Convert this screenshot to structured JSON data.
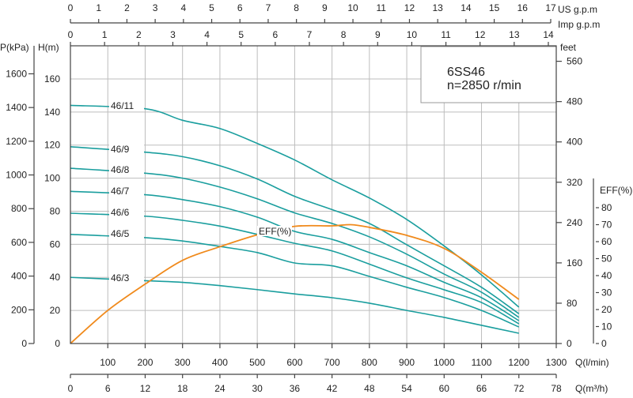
{
  "chart_data": {
    "type": "line",
    "title": "6SS46",
    "subtitle": "n=2850 r/min",
    "grid": true,
    "legend": "top-right",
    "x": {
      "label": "Q(l/min)",
      "range": [
        0,
        1300
      ],
      "ticks": [
        100,
        200,
        300,
        400,
        500,
        600,
        700,
        800,
        900,
        1000,
        1100,
        1200,
        1300
      ]
    },
    "x_m3h": {
      "label": "Q(m³/h)",
      "range": [
        0,
        78
      ],
      "ticks": [
        0,
        6,
        12,
        18,
        24,
        30,
        36,
        42,
        48,
        54,
        60,
        66,
        72,
        78
      ]
    },
    "x_usgpm": {
      "label": "US  g.p.m",
      "range": [
        0,
        17
      ],
      "ticks": [
        0,
        1,
        2,
        3,
        4,
        5,
        6,
        7,
        8,
        9,
        10,
        11,
        12,
        13,
        14,
        15,
        16,
        17
      ]
    },
    "x_impgpm": {
      "label": "Imp  g.p.m",
      "range": [
        0,
        14
      ],
      "ticks": [
        0,
        1,
        2,
        3,
        4,
        5,
        6,
        7,
        8,
        9,
        10,
        11,
        12,
        13,
        14
      ]
    },
    "y_head": {
      "label": "H(m)",
      "range": [
        0,
        160
      ],
      "ticks": [
        0,
        20,
        40,
        60,
        80,
        100,
        120,
        140,
        160
      ]
    },
    "y_kpa": {
      "label": "P(kPa)",
      "ticks": [
        0,
        200,
        400,
        600,
        800,
        1000,
        1200,
        1400,
        1600
      ]
    },
    "y_feet": {
      "label": "feet",
      "ticks": [
        0,
        80,
        160,
        240,
        320,
        400,
        480,
        560
      ]
    },
    "y_eff": {
      "label": "EFF(%)",
      "range": [
        0,
        80
      ],
      "ticks": [
        0,
        10,
        20,
        30,
        40,
        50,
        60,
        70,
        80
      ]
    },
    "q": [
      0,
      200,
      300,
      400,
      500,
      600,
      700,
      800,
      900,
      1000,
      1100,
      1200
    ],
    "series": [
      {
        "name": "46/11",
        "values": [
          144,
          142,
          135,
          130,
          121,
          111,
          99,
          88,
          75,
          59,
          41.5,
          22
        ]
      },
      {
        "name": "46/9",
        "values": [
          119,
          115.7,
          113,
          107.5,
          99.5,
          89,
          81,
          72.6,
          59.7,
          47,
          34,
          18
        ]
      },
      {
        "name": "46/8",
        "values": [
          106,
          103,
          100,
          94.6,
          87.5,
          79,
          72.6,
          64.5,
          54,
          42,
          31,
          15.8
        ]
      },
      {
        "name": "46/7",
        "values": [
          92,
          90,
          87,
          82.8,
          76.4,
          67.8,
          63,
          55,
          47,
          37,
          27.7,
          13.8
        ]
      },
      {
        "name": "46/6",
        "values": [
          78.8,
          77,
          74.5,
          71,
          66,
          60.6,
          56,
          48,
          39.7,
          32.5,
          24.8,
          11.9
        ]
      },
      {
        "name": "46/5",
        "values": [
          66,
          64,
          62,
          58.7,
          55,
          48.7,
          47,
          40.6,
          34,
          27.8,
          20,
          10
        ]
      },
      {
        "name": "46/3",
        "values": [
          40,
          38,
          37,
          35,
          32.6,
          30,
          27.7,
          24.4,
          20,
          15.8,
          11,
          6.2
        ]
      }
    ],
    "efficiency": {
      "name": "EFF(%)",
      "q": [
        0,
        100,
        200,
        300,
        400,
        500,
        600,
        700,
        750,
        800,
        900,
        1000,
        1100,
        1200
      ],
      "values": [
        0,
        19.5,
        35,
        49,
        57,
        64,
        69,
        69.3,
        70,
        68.4,
        63.7,
        56,
        42,
        26
      ]
    }
  },
  "colors": {
    "head_curve": "#1a9e9e",
    "efficiency_curve": "#f08a1c"
  }
}
